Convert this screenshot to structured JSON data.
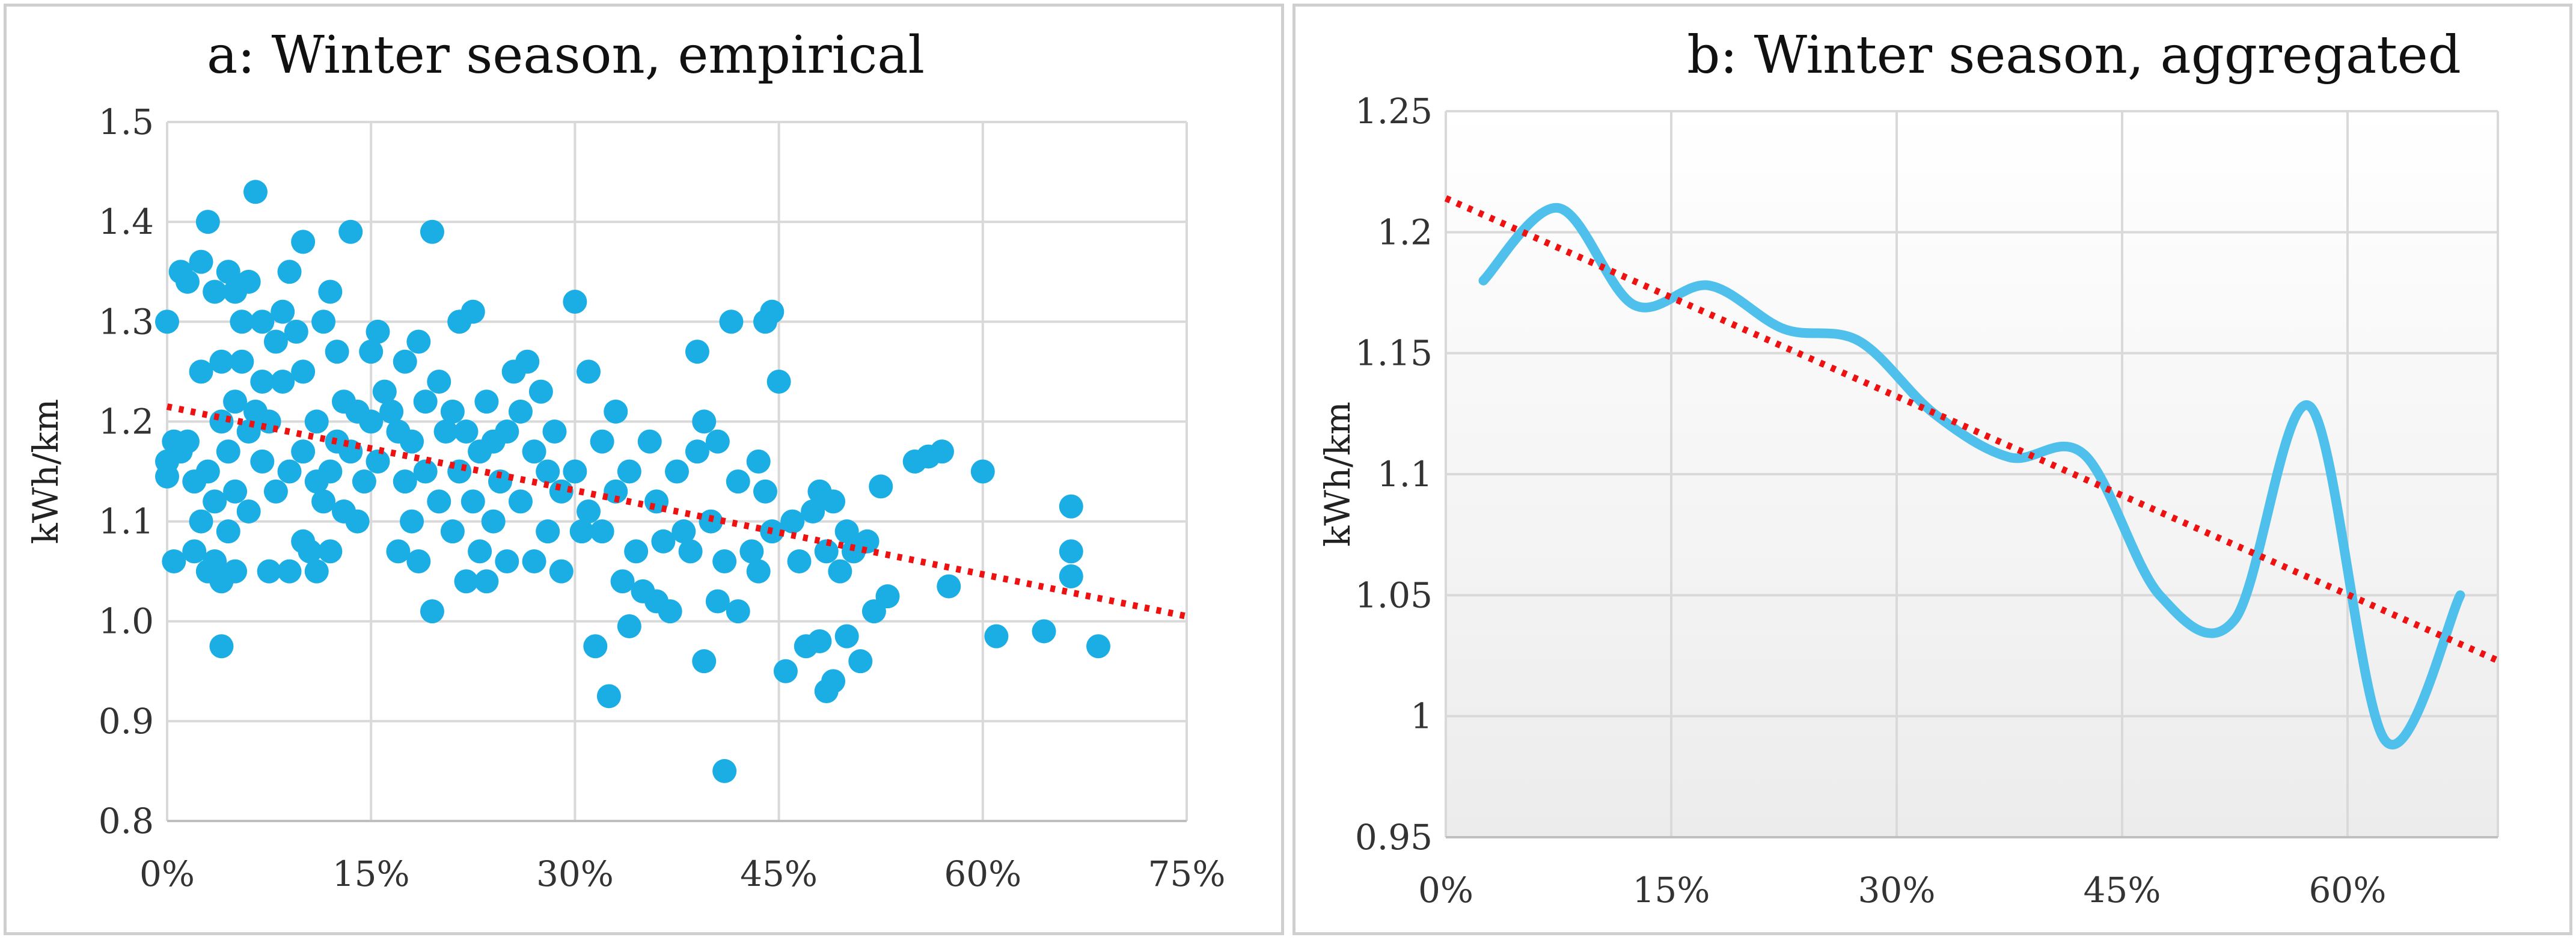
{
  "chart_data": [
    {
      "type": "scatter",
      "title": "a: Winter season, empirical",
      "xlabel": "",
      "ylabel": "kWh/km",
      "xlim": [
        0,
        0.75
      ],
      "ylim": [
        0.8,
        1.5
      ],
      "xticks": [
        0,
        0.15,
        0.3,
        0.45,
        0.6,
        0.75
      ],
      "xtick_labels": [
        "0%",
        "15%",
        "30%",
        "45%",
        "60%",
        "75%"
      ],
      "yticks": [
        0.8,
        0.9,
        1.0,
        1.1,
        1.2,
        1.3,
        1.4,
        1.5
      ],
      "ytick_labels": [
        "0.8",
        "0.9",
        "1.0",
        "1.1",
        "1.2",
        "1.3",
        "1.4",
        "1.5"
      ],
      "grid": true,
      "series_color": "#1aaee5",
      "trend_color": "#ee1111",
      "trendline": {
        "x": [
          0,
          0.75
        ],
        "y": [
          1.215,
          1.005
        ]
      },
      "points": [
        [
          0.0,
          1.3
        ],
        [
          0.0,
          1.16
        ],
        [
          0.0,
          1.145
        ],
        [
          0.005,
          1.18
        ],
        [
          0.005,
          1.06
        ],
        [
          0.01,
          1.35
        ],
        [
          0.01,
          1.17
        ],
        [
          0.015,
          1.34
        ],
        [
          0.015,
          1.18
        ],
        [
          0.02,
          1.07
        ],
        [
          0.02,
          1.14
        ],
        [
          0.025,
          1.25
        ],
        [
          0.025,
          1.36
        ],
        [
          0.025,
          1.1
        ],
        [
          0.03,
          1.4
        ],
        [
          0.03,
          1.15
        ],
        [
          0.03,
          1.05
        ],
        [
          0.035,
          1.33
        ],
        [
          0.035,
          1.12
        ],
        [
          0.035,
          1.06
        ],
        [
          0.04,
          1.26
        ],
        [
          0.04,
          1.2
        ],
        [
          0.04,
          1.04
        ],
        [
          0.04,
          0.975
        ],
        [
          0.045,
          1.35
        ],
        [
          0.045,
          1.17
        ],
        [
          0.045,
          1.09
        ],
        [
          0.05,
          1.33
        ],
        [
          0.05,
          1.22
        ],
        [
          0.05,
          1.13
        ],
        [
          0.05,
          1.05
        ],
        [
          0.055,
          1.3
        ],
        [
          0.055,
          1.26
        ],
        [
          0.06,
          1.34
        ],
        [
          0.06,
          1.19
        ],
        [
          0.06,
          1.11
        ],
        [
          0.065,
          1.43
        ],
        [
          0.065,
          1.21
        ],
        [
          0.07,
          1.3
        ],
        [
          0.07,
          1.24
        ],
        [
          0.07,
          1.16
        ],
        [
          0.075,
          1.2
        ],
        [
          0.075,
          1.05
        ],
        [
          0.08,
          1.28
        ],
        [
          0.08,
          1.13
        ],
        [
          0.085,
          1.31
        ],
        [
          0.085,
          1.24
        ],
        [
          0.09,
          1.35
        ],
        [
          0.09,
          1.15
        ],
        [
          0.09,
          1.05
        ],
        [
          0.095,
          1.29
        ],
        [
          0.1,
          1.38
        ],
        [
          0.1,
          1.25
        ],
        [
          0.1,
          1.17
        ],
        [
          0.1,
          1.08
        ],
        [
          0.105,
          1.07
        ],
        [
          0.11,
          1.14
        ],
        [
          0.11,
          1.2
        ],
        [
          0.11,
          1.05
        ],
        [
          0.115,
          1.3
        ],
        [
          0.115,
          1.12
        ],
        [
          0.12,
          1.33
        ],
        [
          0.12,
          1.15
        ],
        [
          0.12,
          1.07
        ],
        [
          0.125,
          1.27
        ],
        [
          0.125,
          1.18
        ],
        [
          0.13,
          1.22
        ],
        [
          0.13,
          1.11
        ],
        [
          0.135,
          1.39
        ],
        [
          0.135,
          1.17
        ],
        [
          0.14,
          1.21
        ],
        [
          0.14,
          1.1
        ],
        [
          0.145,
          1.14
        ],
        [
          0.15,
          1.27
        ],
        [
          0.15,
          1.2
        ],
        [
          0.155,
          1.29
        ],
        [
          0.155,
          1.16
        ],
        [
          0.16,
          1.23
        ],
        [
          0.165,
          1.21
        ],
        [
          0.17,
          1.19
        ],
        [
          0.17,
          1.07
        ],
        [
          0.175,
          1.26
        ],
        [
          0.175,
          1.14
        ],
        [
          0.18,
          1.18
        ],
        [
          0.18,
          1.1
        ],
        [
          0.185,
          1.28
        ],
        [
          0.185,
          1.06
        ],
        [
          0.19,
          1.22
        ],
        [
          0.19,
          1.15
        ],
        [
          0.195,
          1.39
        ],
        [
          0.195,
          1.01
        ],
        [
          0.2,
          1.24
        ],
        [
          0.2,
          1.12
        ],
        [
          0.205,
          1.19
        ],
        [
          0.21,
          1.21
        ],
        [
          0.21,
          1.09
        ],
        [
          0.215,
          1.3
        ],
        [
          0.215,
          1.15
        ],
        [
          0.22,
          1.19
        ],
        [
          0.22,
          1.04
        ],
        [
          0.225,
          1.31
        ],
        [
          0.225,
          1.12
        ],
        [
          0.23,
          1.17
        ],
        [
          0.23,
          1.07
        ],
        [
          0.235,
          1.22
        ],
        [
          0.235,
          1.04
        ],
        [
          0.24,
          1.18
        ],
        [
          0.24,
          1.1
        ],
        [
          0.245,
          1.14
        ],
        [
          0.25,
          1.19
        ],
        [
          0.25,
          1.06
        ],
        [
          0.255,
          1.25
        ],
        [
          0.26,
          1.21
        ],
        [
          0.26,
          1.12
        ],
        [
          0.265,
          1.26
        ],
        [
          0.27,
          1.17
        ],
        [
          0.27,
          1.06
        ],
        [
          0.275,
          1.23
        ],
        [
          0.28,
          1.15
        ],
        [
          0.28,
          1.09
        ],
        [
          0.285,
          1.19
        ],
        [
          0.29,
          1.13
        ],
        [
          0.29,
          1.05
        ],
        [
          0.3,
          1.32
        ],
        [
          0.3,
          1.15
        ],
        [
          0.305,
          1.09
        ],
        [
          0.31,
          1.25
        ],
        [
          0.31,
          1.11
        ],
        [
          0.315,
          0.975
        ],
        [
          0.32,
          1.18
        ],
        [
          0.32,
          1.09
        ],
        [
          0.325,
          0.925
        ],
        [
          0.33,
          1.21
        ],
        [
          0.33,
          1.13
        ],
        [
          0.335,
          1.04
        ],
        [
          0.34,
          1.15
        ],
        [
          0.34,
          0.995
        ],
        [
          0.345,
          1.07
        ],
        [
          0.35,
          1.03
        ],
        [
          0.355,
          1.18
        ],
        [
          0.36,
          1.12
        ],
        [
          0.36,
          1.02
        ],
        [
          0.365,
          1.08
        ],
        [
          0.37,
          1.01
        ],
        [
          0.375,
          1.15
        ],
        [
          0.38,
          1.09
        ],
        [
          0.385,
          1.07
        ],
        [
          0.39,
          1.27
        ],
        [
          0.39,
          1.17
        ],
        [
          0.395,
          1.2
        ],
        [
          0.395,
          0.96
        ],
        [
          0.4,
          1.1
        ],
        [
          0.405,
          1.18
        ],
        [
          0.405,
          1.02
        ],
        [
          0.41,
          1.06
        ],
        [
          0.41,
          0.85
        ],
        [
          0.415,
          1.3
        ],
        [
          0.42,
          1.14
        ],
        [
          0.42,
          1.01
        ],
        [
          0.43,
          1.07
        ],
        [
          0.435,
          1.16
        ],
        [
          0.435,
          1.05
        ],
        [
          0.44,
          1.3
        ],
        [
          0.44,
          1.13
        ],
        [
          0.445,
          1.31
        ],
        [
          0.445,
          1.09
        ],
        [
          0.45,
          1.24
        ],
        [
          0.455,
          0.95
        ],
        [
          0.46,
          1.1
        ],
        [
          0.465,
          1.06
        ],
        [
          0.47,
          0.975
        ],
        [
          0.475,
          1.11
        ],
        [
          0.48,
          1.13
        ],
        [
          0.48,
          0.98
        ],
        [
          0.485,
          1.07
        ],
        [
          0.485,
          0.93
        ],
        [
          0.49,
          1.12
        ],
        [
          0.49,
          0.94
        ],
        [
          0.495,
          1.05
        ],
        [
          0.5,
          1.09
        ],
        [
          0.5,
          0.985
        ],
        [
          0.505,
          1.07
        ],
        [
          0.51,
          0.96
        ],
        [
          0.515,
          1.08
        ],
        [
          0.52,
          1.01
        ],
        [
          0.525,
          1.135
        ],
        [
          0.53,
          1.025
        ],
        [
          0.55,
          1.16
        ],
        [
          0.56,
          1.165
        ],
        [
          0.57,
          1.17
        ],
        [
          0.575,
          1.035
        ],
        [
          0.6,
          1.15
        ],
        [
          0.61,
          0.985
        ],
        [
          0.645,
          0.99
        ],
        [
          0.665,
          1.115
        ],
        [
          0.665,
          1.07
        ],
        [
          0.665,
          1.045
        ],
        [
          0.685,
          0.975
        ]
      ]
    },
    {
      "type": "line",
      "title": "b: Winter season, aggregated",
      "xlabel": "",
      "ylabel": "kWh/km",
      "xlim": [
        0,
        0.7
      ],
      "ylim": [
        0.95,
        1.25
      ],
      "xticks": [
        0,
        0.15,
        0.3,
        0.45,
        0.6
      ],
      "xtick_labels": [
        "0%",
        "15%",
        "30%",
        "45%",
        "60%"
      ],
      "yticks": [
        0.95,
        1.0,
        1.05,
        1.1,
        1.15,
        1.2,
        1.25
      ],
      "ytick_labels": [
        "0.95",
        "1",
        "1.05",
        "1.1",
        "1.15",
        "1.2",
        "1.25"
      ],
      "grid": true,
      "series_color": "#4fc0ec",
      "trend_color": "#ee1111",
      "trendline": {
        "x": [
          0,
          0.7
        ],
        "y": [
          1.214,
          1.023
        ]
      },
      "x": [
        0.025,
        0.075,
        0.125,
        0.175,
        0.225,
        0.275,
        0.325,
        0.375,
        0.425,
        0.475,
        0.525,
        0.575,
        0.625,
        0.675
      ],
      "y": [
        1.18,
        1.21,
        1.17,
        1.178,
        1.16,
        1.155,
        1.125,
        1.107,
        1.108,
        1.05,
        1.04,
        1.128,
        0.99,
        1.05
      ]
    }
  ]
}
